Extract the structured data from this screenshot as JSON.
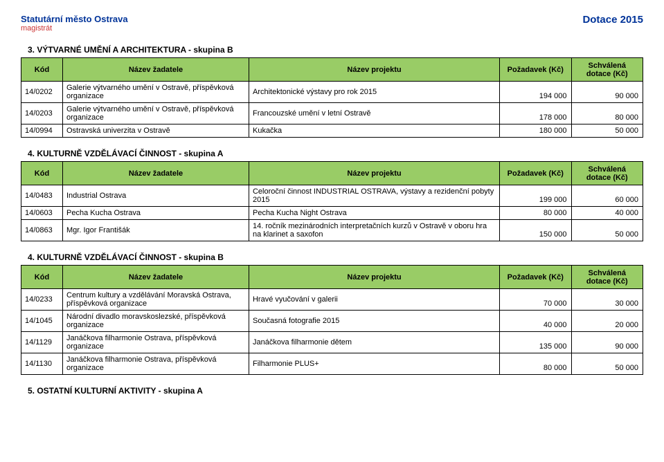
{
  "header": {
    "org1": "Statutární město Ostrava",
    "org2": "magistrát",
    "right": "Dotace 2015"
  },
  "columns": {
    "code": "Kód",
    "applicant": "Název žadatele",
    "project": "Název projektu",
    "request": "Požadavek (Kč)",
    "approved": "Schválená dotace (Kč)"
  },
  "sections": [
    {
      "title": "3. VÝTVARNÉ UMĚNÍ A ARCHITEKTURA - skupina B",
      "rows": [
        {
          "code": "14/0202",
          "applicant": "Galerie výtvarného umění v Ostravě, příspěvková organizace",
          "project": "Architektonické výstavy pro rok 2015",
          "request": "194 000",
          "approved": "90 000"
        },
        {
          "code": "14/0203",
          "applicant": "Galerie výtvarného umění v Ostravě, příspěvková organizace",
          "project": "Francouzské umění v letní Ostravě",
          "request": "178 000",
          "approved": "80 000"
        },
        {
          "code": "14/0994",
          "applicant": "Ostravská univerzita v Ostravě",
          "project": "Kukačka",
          "request": "180 000",
          "approved": "50 000"
        }
      ]
    },
    {
      "title": "4. KULTURNĚ VZDĚLÁVACÍ ČINNOST - skupina A",
      "rows": [
        {
          "code": "14/0483",
          "applicant": "Industrial Ostrava",
          "project": "Celoroční činnost INDUSTRIAL OSTRAVA, výstavy a rezidenční pobyty 2015",
          "request": "199 000",
          "approved": "60 000"
        },
        {
          "code": "14/0603",
          "applicant": "Pecha Kucha Ostrava",
          "project": "Pecha Kucha Night Ostrava",
          "request": "80 000",
          "approved": "40 000"
        },
        {
          "code": "14/0863",
          "applicant": "Mgr. Igor Františák",
          "project": "14. ročník mezinárodních interpretačních kurzů v Ostravě v oboru hra na klarinet a saxofon",
          "request": "150 000",
          "approved": "50 000"
        }
      ]
    },
    {
      "title": "4. KULTURNĚ VZDĚLÁVACÍ ČINNOST - skupina B",
      "rows": [
        {
          "code": "14/0233",
          "applicant": "Centrum kultury a vzdělávání Moravská Ostrava, příspěvková organizace",
          "project": "Hravé vyučování v galerii",
          "request": "70 000",
          "approved": "30 000"
        },
        {
          "code": "14/1045",
          "applicant": "Národní divadlo moravskoslezské, příspěvková organizace",
          "project": "Současná fotografie 2015",
          "request": "40 000",
          "approved": "20 000"
        },
        {
          "code": "14/1129",
          "applicant": "Janáčkova filharmonie Ostrava, příspěvková organizace",
          "project": "Janáčkova filharmonie dětem",
          "request": "135 000",
          "approved": "90 000"
        },
        {
          "code": "14/1130",
          "applicant": "Janáčkova filharmonie Ostrava, příspěvková organizace",
          "project": "Filharmonie PLUS+",
          "request": "80 000",
          "approved": "50 000"
        }
      ]
    }
  ],
  "footer_title": "5. OSTATNÍ KULTURNÍ AKTIVITY - skupina A"
}
